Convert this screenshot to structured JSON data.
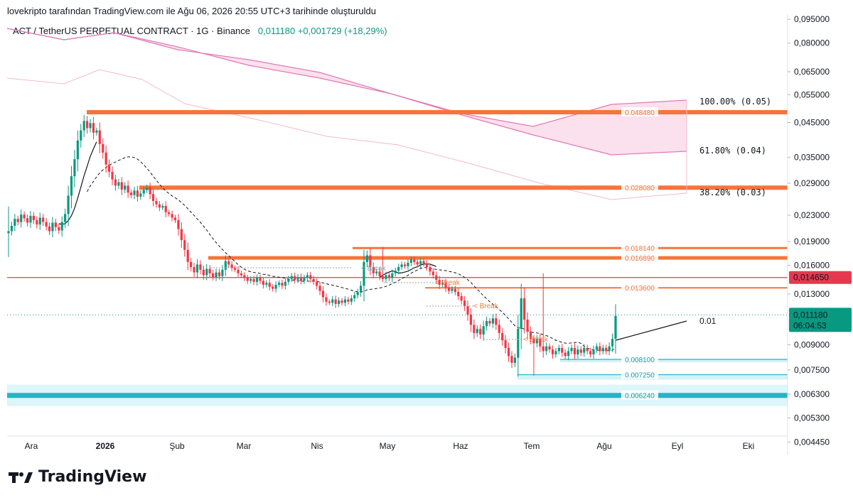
{
  "header": {
    "caption": "lovekripto tarafından TradingView.com ile Ağu 06, 2026 20:55 UTC+3 tarihinde oluşturuldu"
  },
  "symbol": {
    "name": "ACT / TetherUS PERPETUAL CONTRACT · 1G · Binance",
    "price": "0,011180",
    "change": "+0,001729 (+18,29%)"
  },
  "colors": {
    "up": "#089981",
    "down": "#f23645",
    "level": "#f7743b",
    "red_line": "#e5394f",
    "support": "#22b5c4",
    "ribbon": "#f7c6de",
    "ribbon_edge": "#e07ab5"
  },
  "footer": {
    "logo_text": "TradingView"
  },
  "chart_data": {
    "type": "candlestick",
    "title": "ACT / TetherUS PERPETUAL CONTRACT · 1G · Binance",
    "x_ticks": [
      "Ara",
      "2026",
      "Şub",
      "Mar",
      "Nis",
      "May",
      "Haz",
      "Tem",
      "Ağu",
      "Eyl",
      "Eki"
    ],
    "y_ticks": [
      "0,095000",
      "0,080000",
      "0,065000",
      "0,055000",
      "0,045000",
      "0,035000",
      "0,029000",
      "0,023000",
      "0,019000",
      "0,016000",
      "0,013000",
      "0,009000",
      "0,007500",
      "0,006300",
      "0,005300",
      "0,004450"
    ],
    "y_scale": "log",
    "price_labels": {
      "current": "0,011180",
      "countdown": "06:04:53",
      "red_level": "0,014650"
    },
    "levels": [
      {
        "label": "0.048480",
        "value": 0.04848,
        "kind": "resistance"
      },
      {
        "label": "0.028080",
        "value": 0.02808,
        "kind": "resistance"
      },
      {
        "label": "0.018140",
        "value": 0.01814,
        "kind": "resistance"
      },
      {
        "label": "0.016890",
        "value": 0.01689,
        "kind": "resistance"
      },
      {
        "label": "0.013600",
        "value": 0.0136,
        "kind": "resistance"
      },
      {
        "label": "0.008100",
        "value": 0.0081,
        "kind": "support"
      },
      {
        "label": "0.007250",
        "value": 0.00725,
        "kind": "support"
      },
      {
        "label": "0.006240",
        "value": 0.00624,
        "kind": "support"
      }
    ],
    "fib_labels": [
      {
        "text": "100.00%  (0.05)",
        "value": 0.05
      },
      {
        "text": "61.80%  (0.04)",
        "value": 0.04
      },
      {
        "text": "38.20%  (0.03)",
        "value": 0.03
      }
    ],
    "projection_label": "0.01",
    "break_labels": [
      "< Break",
      "< Break",
      "< Break",
      "< Break"
    ],
    "close_series": [
      0.0205,
      0.0213,
      0.0224,
      0.0219,
      0.0231,
      0.0225,
      0.0218,
      0.0229,
      0.0222,
      0.0215,
      0.0226,
      0.0219,
      0.0212,
      0.0205,
      0.0218,
      0.0211,
      0.0206,
      0.0219,
      0.0232,
      0.0265,
      0.0305,
      0.0345,
      0.0395,
      0.0425,
      0.0455,
      0.0432,
      0.0448,
      0.0418,
      0.0425,
      0.0385,
      0.0362,
      0.0332,
      0.0315,
      0.0298,
      0.0285,
      0.0292,
      0.0277,
      0.0285,
      0.0271,
      0.0266,
      0.0275,
      0.0263,
      0.0269,
      0.0276,
      0.0281,
      0.0268,
      0.0255,
      0.0249,
      0.0243,
      0.0246,
      0.0235,
      0.0232,
      0.0226,
      0.0222,
      0.0208,
      0.0192,
      0.0179,
      0.0164,
      0.0158,
      0.0152,
      0.0161,
      0.0155,
      0.0149,
      0.0156,
      0.0151,
      0.0147,
      0.0152,
      0.0148,
      0.0155,
      0.0165,
      0.0161,
      0.0157,
      0.0155,
      0.0151,
      0.0149,
      0.0146,
      0.0143,
      0.0145,
      0.0142,
      0.0146,
      0.0143,
      0.0139,
      0.0141,
      0.0137,
      0.0135,
      0.0139,
      0.0141,
      0.0138,
      0.0142,
      0.0145,
      0.0148,
      0.0144,
      0.0147,
      0.0143,
      0.0146,
      0.0149,
      0.0145,
      0.0142,
      0.0138,
      0.0133,
      0.0127,
      0.0123,
      0.0122,
      0.0125,
      0.0121,
      0.0124,
      0.0122,
      0.0125,
      0.0123,
      0.0126,
      0.0129,
      0.0132,
      0.0138,
      0.0164,
      0.0172,
      0.0158,
      0.0151,
      0.0153,
      0.0148,
      0.0145,
      0.0149,
      0.0146,
      0.0151,
      0.0154,
      0.0158,
      0.0161,
      0.0159,
      0.0163,
      0.0167,
      0.0164,
      0.0161,
      0.0165,
      0.0162,
      0.0158,
      0.0153,
      0.0149,
      0.0144,
      0.0139,
      0.0141,
      0.0136,
      0.0133,
      0.0135,
      0.0132,
      0.0128,
      0.0124,
      0.0119,
      0.0112,
      0.0104,
      0.0098,
      0.0101,
      0.0097,
      0.0103,
      0.0107,
      0.0105,
      0.0109,
      0.0104,
      0.0098,
      0.0093,
      0.0088,
      0.0083,
      0.0079,
      0.0082,
      0.0101,
      0.0126,
      0.0108,
      0.0099,
      0.0094,
      0.0091,
      0.0094,
      0.0089,
      0.0086,
      0.0089,
      0.0087,
      0.0084,
      0.0086,
      0.0088,
      0.0085,
      0.0083,
      0.0086,
      0.0088,
      0.0084,
      0.0087,
      0.0085,
      0.0088,
      0.0086,
      0.0084,
      0.0087,
      0.0089,
      0.0086,
      0.0088,
      0.0086,
      0.0089,
      0.0094,
      0.0111
    ]
  }
}
